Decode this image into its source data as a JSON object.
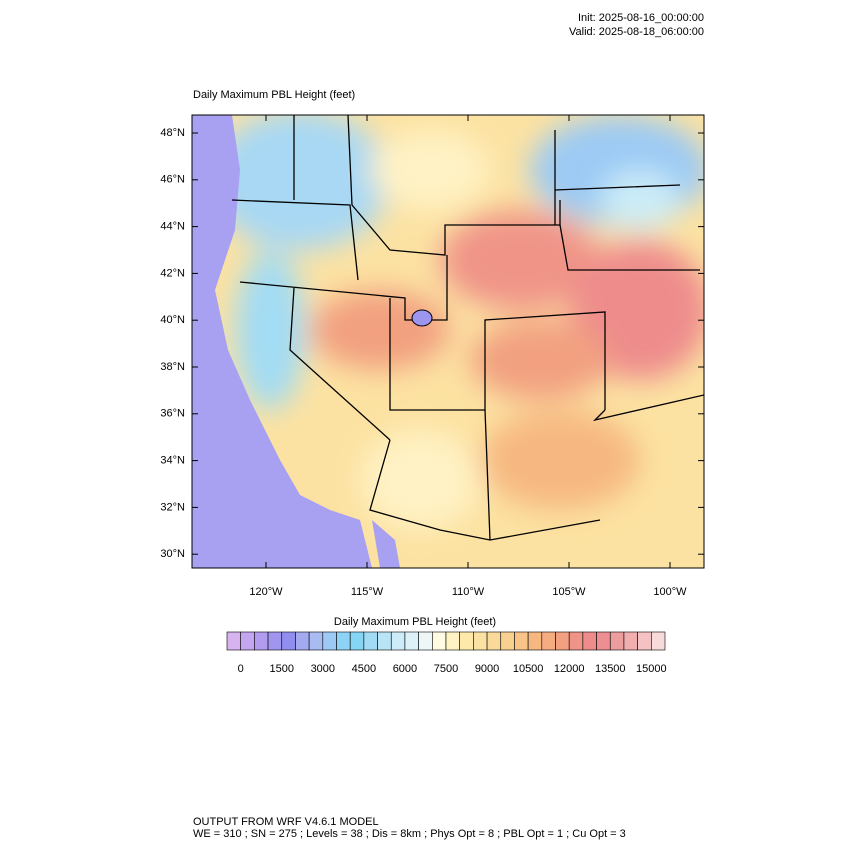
{
  "header": {
    "init": "Init: 2025-08-16_00:00:00",
    "valid": "Valid: 2025-08-18_06:00:00"
  },
  "map": {
    "title": "Daily Maximum PBL Height   (feet)",
    "lat_labels": [
      "48°N",
      "46°N",
      "44°N",
      "42°N",
      "40°N",
      "38°N",
      "36°N",
      "34°N",
      "32°N",
      "30°N"
    ],
    "lon_labels": [
      "120°W",
      "115°W",
      "110°W",
      "105°W",
      "100°W"
    ]
  },
  "colorbar": {
    "title": "Daily Maximum PBL Height  (feet)",
    "ticks": [
      0,
      1500,
      3000,
      4500,
      6000,
      7500,
      9000,
      10500,
      12000,
      13500,
      15000
    ],
    "colors": [
      "#d7b4f0",
      "#c4a6f0",
      "#b29cf0",
      "#a096f0",
      "#928ef0",
      "#a4aaf0",
      "#a8bcf2",
      "#9ccaf4",
      "#8ed2f6",
      "#84d6f4",
      "#a2dcf4",
      "#b8e4f6",
      "#cbecf8",
      "#ddf2f8",
      "#eef7f8",
      "#fffae2",
      "#fff2c4",
      "#fdeaaa",
      "#fce2a2",
      "#fada98",
      "#f8d090",
      "#f8c488",
      "#f6b880",
      "#f4ac80",
      "#f2a080",
      "#f09488",
      "#ee8c8c",
      "#ec8e92",
      "#ec9e9e",
      "#f0aeae",
      "#f4c2c2",
      "#f8dada"
    ]
  },
  "footer": {
    "line1": "OUTPUT FROM WRF V4.6.1 MODEL",
    "line2": "WE = 310 ; SN = 275 ; Levels = 38 ; Dis = 8km ; Phys Opt = 8 ; PBL Opt = 1 ; Cu Opt = 3"
  }
}
